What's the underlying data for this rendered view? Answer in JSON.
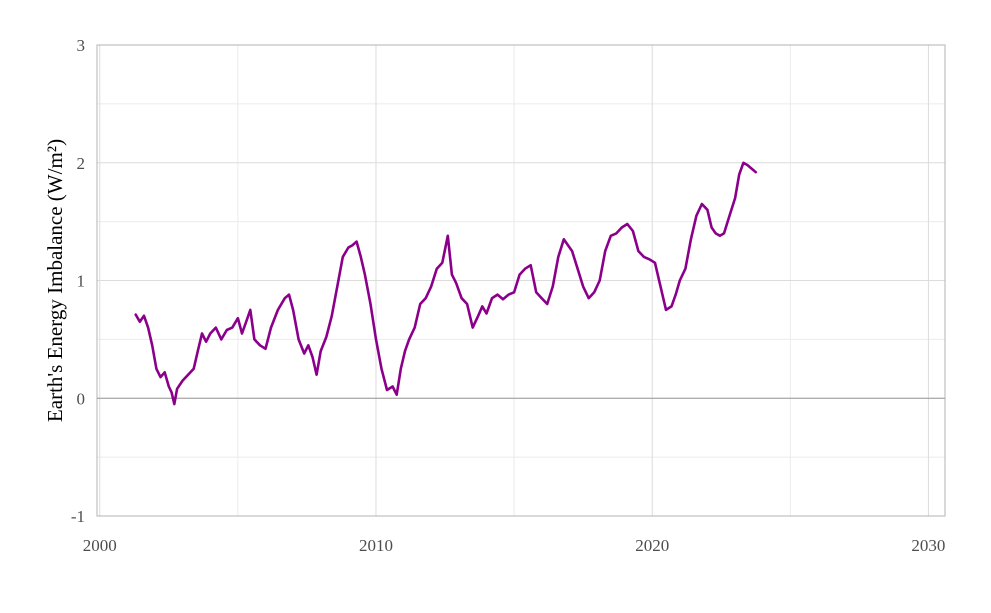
{
  "chart_data": {
    "type": "line",
    "title": "",
    "xlabel": "",
    "ylabel": "Earth's Energy Imbalance (W/m²)",
    "xlim": [
      1999.9,
      2030.6
    ],
    "ylim": [
      -1,
      3
    ],
    "x_ticks": [
      2000,
      2010,
      2020,
      2030
    ],
    "y_ticks": [
      -1,
      0,
      1,
      2,
      3
    ],
    "x_tick_labels": [
      "2000",
      "2010",
      "2020",
      "2030"
    ],
    "y_tick_labels": [
      "-1",
      "0",
      "1",
      "2",
      "3"
    ],
    "grid": true,
    "zero_line": true,
    "line_color": "#8b008b",
    "series": [
      {
        "x": [
          2001.3,
          2001.45,
          2001.6,
          2001.75,
          2001.9,
          2002.05,
          2002.2,
          2002.35,
          2002.5,
          2002.6,
          2002.7,
          2002.8,
          2003.0,
          2003.2,
          2003.4,
          2003.55,
          2003.7,
          2003.85,
          2004.0,
          2004.2,
          2004.4,
          2004.6,
          2004.8,
          2005.0,
          2005.15,
          2005.3,
          2005.45,
          2005.6,
          2005.8,
          2006.0,
          2006.2,
          2006.45,
          2006.7,
          2006.85,
          2007.0,
          2007.2,
          2007.4,
          2007.55,
          2007.7,
          2007.85,
          2008.0,
          2008.2,
          2008.4,
          2008.6,
          2008.8,
          2009.0,
          2009.15,
          2009.3,
          2009.45,
          2009.6,
          2009.8,
          2010.0,
          2010.2,
          2010.4,
          2010.6,
          2010.75,
          2010.9,
          2011.05,
          2011.2,
          2011.4,
          2011.6,
          2011.8,
          2012.0,
          2012.2,
          2012.4,
          2012.6,
          2012.75,
          2012.9,
          2013.1,
          2013.3,
          2013.5,
          2013.7,
          2013.85,
          2014.0,
          2014.2,
          2014.4,
          2014.6,
          2014.8,
          2015.0,
          2015.2,
          2015.4,
          2015.6,
          2015.8,
          2016.0,
          2016.2,
          2016.4,
          2016.6,
          2016.8,
          2016.95,
          2017.1,
          2017.3,
          2017.5,
          2017.7,
          2017.9,
          2018.1,
          2018.3,
          2018.5,
          2018.7,
          2018.9,
          2019.1,
          2019.3,
          2019.5,
          2019.7,
          2019.9,
          2020.1,
          2020.3,
          2020.5,
          2020.7,
          2020.85,
          2021.0,
          2021.2,
          2021.4,
          2021.6,
          2021.8,
          2022.0,
          2022.15,
          2022.3,
          2022.45,
          2022.6,
          2022.8,
          2023.0,
          2023.15,
          2023.3,
          2023.45,
          2023.6,
          2023.75
        ],
        "y": [
          0.71,
          0.65,
          0.7,
          0.6,
          0.45,
          0.25,
          0.18,
          0.22,
          0.1,
          0.05,
          -0.05,
          0.08,
          0.15,
          0.2,
          0.25,
          0.4,
          0.55,
          0.48,
          0.55,
          0.6,
          0.5,
          0.58,
          0.6,
          0.68,
          0.55,
          0.65,
          0.75,
          0.5,
          0.45,
          0.42,
          0.6,
          0.75,
          0.85,
          0.88,
          0.75,
          0.5,
          0.38,
          0.45,
          0.35,
          0.2,
          0.4,
          0.52,
          0.7,
          0.95,
          1.2,
          1.28,
          1.3,
          1.33,
          1.2,
          1.05,
          0.8,
          0.5,
          0.25,
          0.07,
          0.1,
          0.03,
          0.25,
          0.4,
          0.5,
          0.6,
          0.8,
          0.85,
          0.95,
          1.1,
          1.15,
          1.38,
          1.05,
          0.98,
          0.85,
          0.8,
          0.6,
          0.7,
          0.78,
          0.72,
          0.85,
          0.88,
          0.84,
          0.88,
          0.9,
          1.05,
          1.1,
          1.13,
          0.9,
          0.85,
          0.8,
          0.95,
          1.2,
          1.35,
          1.3,
          1.25,
          1.1,
          0.95,
          0.85,
          0.9,
          1.0,
          1.25,
          1.38,
          1.4,
          1.45,
          1.48,
          1.42,
          1.25,
          1.2,
          1.18,
          1.15,
          0.95,
          0.75,
          0.78,
          0.88,
          1.0,
          1.1,
          1.35,
          1.55,
          1.65,
          1.6,
          1.45,
          1.4,
          1.38,
          1.4,
          1.55,
          1.7,
          1.9,
          2.0,
          1.98,
          1.95,
          1.92
        ]
      }
    ]
  }
}
